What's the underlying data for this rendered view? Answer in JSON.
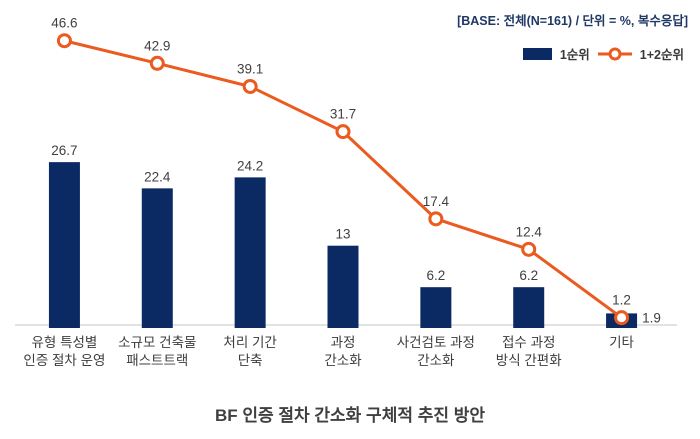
{
  "header": {
    "base_note": "[BASE: 전체(N=161) / 단위 = %, 복수응답]"
  },
  "legend": {
    "series1_label": "1순위",
    "series2_label": "1+2순위"
  },
  "title": "BF 인증 절차 간소화 구체적 추진 방안",
  "colors": {
    "bar": "#0B2A63",
    "line": "#EB5A1E",
    "axis": "#D9D9D9",
    "value_label": "#404040",
    "category_label": "#3D3D3D",
    "note": "#1F3864",
    "marker_fill": "#FFFFFF"
  },
  "chart_data": {
    "type": "bar+line",
    "title": "BF 인증 절차 간소화 구체적 추진 방안",
    "note": "[BASE: 전체(N=161) / 단위 = %, 복수응답]",
    "categories": [
      "유형 특성별\n인증 절차 운영",
      "소규모 건축물\n패스트트랙",
      "처리 기간\n단축",
      "과정\n간소화",
      "사건검토 과정\n간소화",
      "접수 과정\n방식 간편화",
      "기타"
    ],
    "series": [
      {
        "name": "1순위",
        "type": "bar",
        "values": [
          26.7,
          22.4,
          24.2,
          13,
          6.2,
          6.2,
          1.9
        ],
        "labels": [
          "26.7",
          "22.4",
          "24.2",
          "13",
          "6.2",
          "6.2",
          "1.9"
        ]
      },
      {
        "name": "1+2순위",
        "type": "line",
        "values": [
          46.6,
          42.9,
          39.1,
          31.7,
          17.4,
          12.4,
          1.2
        ],
        "labels": [
          "46.6",
          "42.9",
          "39.1",
          "31.7",
          "17.4",
          "12.4",
          "1.2"
        ]
      }
    ],
    "ylim": [
      0,
      50
    ],
    "grid": false,
    "y_axis_visible": false,
    "legend_position": "top-right"
  }
}
